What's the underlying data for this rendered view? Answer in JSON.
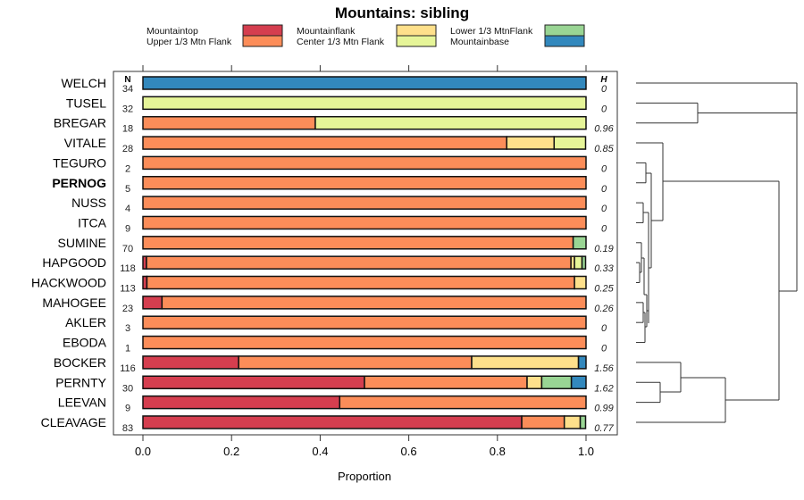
{
  "chart_data": {
    "type": "bar",
    "stacked": true,
    "orientation": "horizontal",
    "title": "Mountains: sibling",
    "xlabel": "Proportion",
    "xlim": [
      0,
      1
    ],
    "xticks": [
      "0.0",
      "0.2",
      "0.4",
      "0.6",
      "0.8",
      "1.0"
    ],
    "n_header": "N",
    "h_header": "H",
    "legend": [
      {
        "name": "Mountaintop",
        "color": "#d53e4f"
      },
      {
        "name": "Upper 1/3 Mtn Flank",
        "color": "#fc8d59"
      },
      {
        "name": "Mountainflank",
        "color": "#fee08b"
      },
      {
        "name": "Center 1/3 Mtn Flank",
        "color": "#e6f598"
      },
      {
        "name": "Lower 1/3 MtnFlank",
        "color": "#99d594"
      },
      {
        "name": "Mountainbase",
        "color": "#3288bd"
      }
    ],
    "series_order": [
      "Mountaintop",
      "Upper 1/3 Mtn Flank",
      "Mountainflank",
      "Center 1/3 Mtn Flank",
      "Lower 1/3 MtnFlank",
      "Mountainbase"
    ],
    "categories": [
      {
        "label": "WELCH",
        "n": "34",
        "h": "0",
        "bold": false,
        "values": [
          0,
          0,
          0,
          0,
          0,
          1
        ]
      },
      {
        "label": "TUSEL",
        "n": "32",
        "h": "0",
        "bold": false,
        "values": [
          0,
          0,
          0,
          1,
          0,
          0
        ]
      },
      {
        "label": "BREGAR",
        "n": "18",
        "h": "0.96",
        "bold": false,
        "values": [
          0,
          0.389,
          0,
          0.611,
          0,
          0
        ]
      },
      {
        "label": "VITALE",
        "n": "28",
        "h": "0.85",
        "bold": false,
        "values": [
          0,
          0.821,
          0.107,
          0.071,
          0,
          0
        ]
      },
      {
        "label": "TEGURO",
        "n": "2",
        "h": "0",
        "bold": false,
        "values": [
          0,
          1,
          0,
          0,
          0,
          0
        ]
      },
      {
        "label": "PERNOG",
        "n": "5",
        "h": "0",
        "bold": true,
        "values": [
          0,
          1,
          0,
          0,
          0,
          0
        ]
      },
      {
        "label": "NUSS",
        "n": "4",
        "h": "0",
        "bold": false,
        "values": [
          0,
          1,
          0,
          0,
          0,
          0
        ]
      },
      {
        "label": "ITCA",
        "n": "9",
        "h": "0",
        "bold": false,
        "values": [
          0,
          1,
          0,
          0,
          0,
          0
        ]
      },
      {
        "label": "SUMINE",
        "n": "70",
        "h": "0.19",
        "bold": false,
        "values": [
          0,
          0.971,
          0,
          0,
          0.029,
          0
        ]
      },
      {
        "label": "HAPGOOD",
        "n": "118",
        "h": "0.33",
        "bold": false,
        "values": [
          0.008,
          0.958,
          0.008,
          0.017,
          0.008,
          0
        ]
      },
      {
        "label": "HACKWOOD",
        "n": "113",
        "h": "0.25",
        "bold": false,
        "values": [
          0.009,
          0.965,
          0.027,
          0,
          0,
          0
        ]
      },
      {
        "label": "MAHOGEE",
        "n": "23",
        "h": "0.26",
        "bold": false,
        "values": [
          0.043,
          0.957,
          0,
          0,
          0,
          0
        ]
      },
      {
        "label": "AKLER",
        "n": "3",
        "h": "0",
        "bold": false,
        "values": [
          0,
          1,
          0,
          0,
          0,
          0
        ]
      },
      {
        "label": "EBODA",
        "n": "1",
        "h": "0",
        "bold": false,
        "values": [
          0,
          1,
          0,
          0,
          0,
          0
        ]
      },
      {
        "label": "BOCKER",
        "n": "116",
        "h": "1.56",
        "bold": false,
        "values": [
          0.216,
          0.526,
          0.241,
          0,
          0,
          0.017
        ]
      },
      {
        "label": "PERNTY",
        "n": "30",
        "h": "1.62",
        "bold": false,
        "values": [
          0.5,
          0.367,
          0.033,
          0,
          0.067,
          0.033
        ]
      },
      {
        "label": "LEEVAN",
        "n": "9",
        "h": "0.99",
        "bold": false,
        "values": [
          0.444,
          0.556,
          0,
          0,
          0,
          0
        ]
      },
      {
        "label": "CLEAVAGE",
        "n": "83",
        "h": "0.77",
        "bold": false,
        "values": [
          0.855,
          0.096,
          0.036,
          0,
          0.012,
          0
        ]
      }
    ]
  }
}
